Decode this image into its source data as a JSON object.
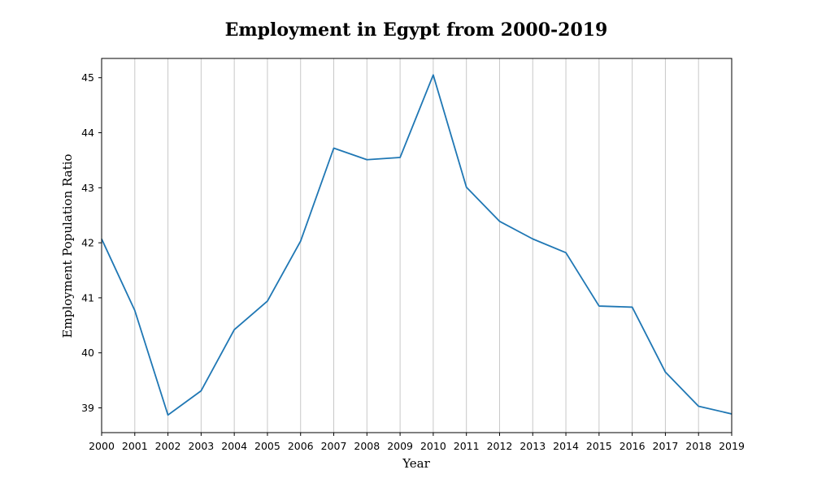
{
  "chart_data": {
    "type": "line",
    "title": "Employment in Egypt from 2000-2019",
    "xlabel": "Year",
    "ylabel": "Employment Population Ratio",
    "x": [
      "2000",
      "2001",
      "2002",
      "2003",
      "2004",
      "2005",
      "2006",
      "2007",
      "2008",
      "2009",
      "2010",
      "2011",
      "2012",
      "2013",
      "2014",
      "2015",
      "2016",
      "2017",
      "2018",
      "2019"
    ],
    "series": [
      {
        "values": [
          42.07,
          40.77,
          38.87,
          39.31,
          40.42,
          40.94,
          42.03,
          43.72,
          43.51,
          43.55,
          45.05,
          43.01,
          42.39,
          42.07,
          41.82,
          40.85,
          40.83,
          39.65,
          39.03,
          38.89
        ],
        "color": "#1f77b4"
      }
    ],
    "ylim": [
      38.55,
      45.35
    ],
    "yticks": [
      "39",
      "40",
      "41",
      "42",
      "43",
      "44",
      "45"
    ],
    "grid": "vertical",
    "legend": "none"
  }
}
